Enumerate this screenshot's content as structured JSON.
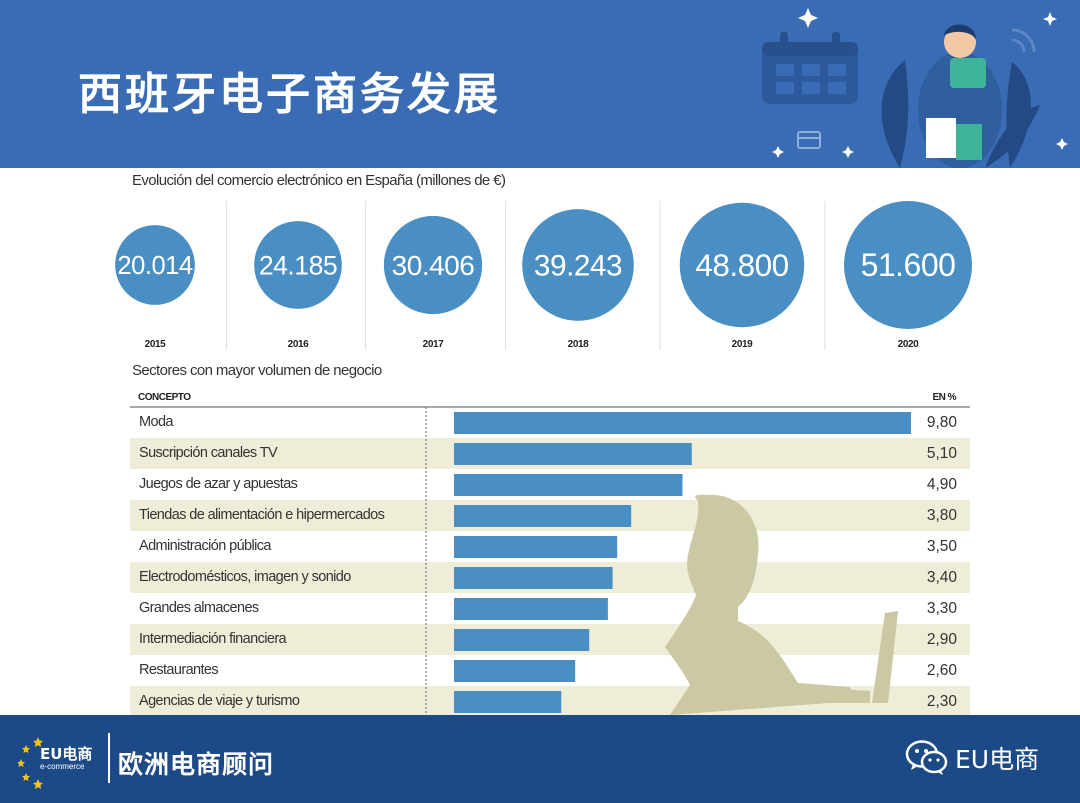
{
  "header": {
    "title": "西班牙电子商务发展"
  },
  "footer": {
    "logo_text": "EU电商",
    "logo_sub": "e-commerce",
    "brand": "欧洲电商顾问",
    "wechat_label": "EU电商"
  },
  "colors": {
    "header_bg": "#3a6cb5",
    "footer_bg": "#1c4a86",
    "accent": "#4a8fc4",
    "row_stripe": "#efecd8",
    "silhouette": "#cbc9a3"
  },
  "chart_data": [
    {
      "type": "bubble",
      "title": "Evolución del comercio electrónico en España (millones de €)",
      "categories": [
        "2015",
        "2016",
        "2017",
        "2018",
        "2019",
        "2020"
      ],
      "values": [
        20014,
        24185,
        30406,
        39243,
        48800,
        51600
      ],
      "value_labels": [
        "20.014",
        "24.185",
        "30.406",
        "39.243",
        "48.800",
        "51.600"
      ]
    },
    {
      "type": "bar",
      "orientation": "horizontal",
      "title": "Sectores con mayor volumen de negocio",
      "column_label": "CONCEPTO",
      "unit_label": "EN %",
      "categories": [
        "Moda",
        "Suscripción canales TV",
        "Juegos de azar y apuestas",
        "Tiendas de alimentación e hipermercados",
        "Administración pública",
        "Electrodomésticos, imagen y sonido",
        "Grandes almacenes",
        "Intermediación financiera",
        "Restaurantes",
        "Agencias de viaje y turismo"
      ],
      "values": [
        9.8,
        5.1,
        4.9,
        3.8,
        3.5,
        3.4,
        3.3,
        2.9,
        2.6,
        2.3
      ],
      "value_labels": [
        "9,80",
        "5,10",
        "4,90",
        "3,80",
        "3,50",
        "3,40",
        "3,30",
        "2,90",
        "2,60",
        "2,30"
      ]
    }
  ]
}
